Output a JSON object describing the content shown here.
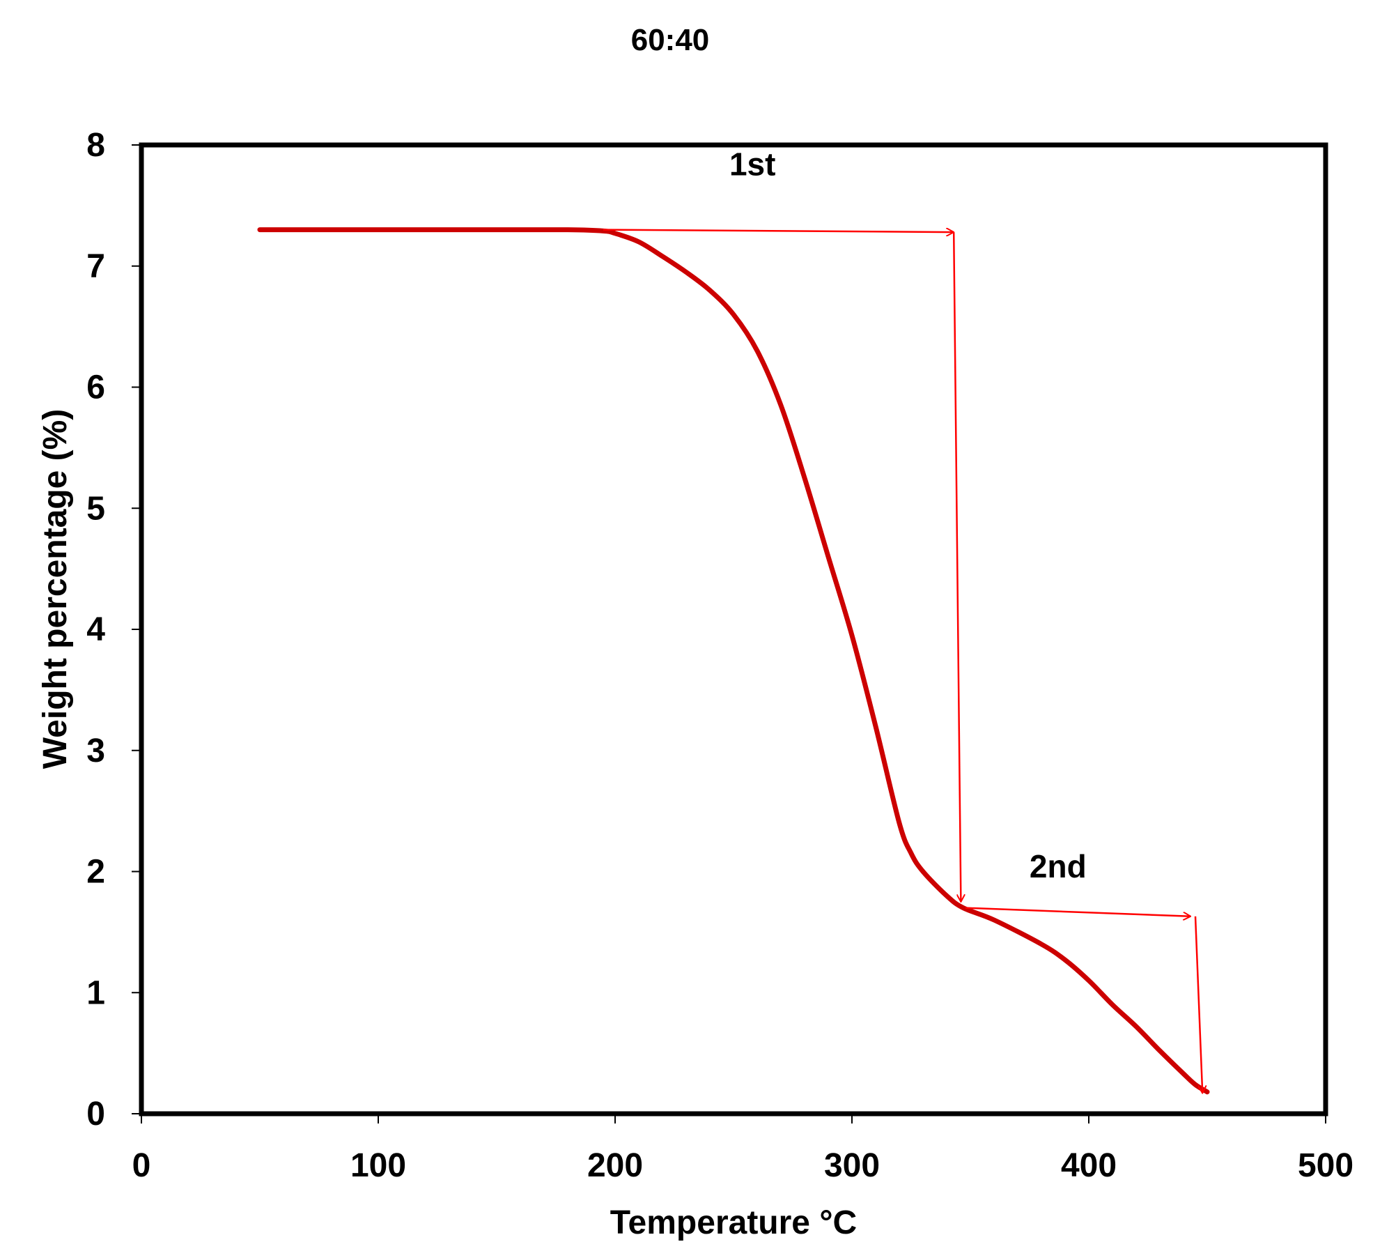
{
  "chart_data": {
    "type": "line",
    "title": "60:40",
    "xlabel": "Temperature °C",
    "ylabel": "Weight percentage (%)",
    "xlim": [
      0,
      500
    ],
    "ylim": [
      0,
      8
    ],
    "xticks": [
      0,
      100,
      200,
      300,
      400,
      500
    ],
    "yticks": [
      0,
      1,
      2,
      3,
      4,
      5,
      6,
      7,
      8
    ],
    "grid": false,
    "legend": "none",
    "series": [
      {
        "color": "#cc0000",
        "x": [
          50,
          100,
          150,
          180,
          195,
          200,
          210,
          220,
          230,
          240,
          250,
          260,
          270,
          280,
          290,
          300,
          310,
          320,
          325,
          330,
          340,
          347,
          360,
          380,
          390,
          400,
          410,
          420,
          430,
          440,
          445,
          450
        ],
        "y": [
          7.3,
          7.3,
          7.3,
          7.3,
          7.29,
          7.27,
          7.2,
          7.08,
          6.95,
          6.8,
          6.6,
          6.3,
          5.85,
          5.25,
          4.6,
          3.95,
          3.2,
          2.4,
          2.15,
          2.0,
          1.8,
          1.7,
          1.6,
          1.4,
          1.27,
          1.1,
          0.9,
          0.72,
          0.52,
          0.33,
          0.24,
          0.18
        ]
      }
    ],
    "annotations": [
      {
        "label": "1st",
        "label_at": [
          258,
          7.75
        ],
        "color": "#ff0000",
        "arrows": [
          {
            "from": [
              195,
              7.3
            ],
            "to": [
              343,
              7.28
            ]
          },
          {
            "from": [
              343,
              7.28
            ],
            "to": [
              346,
              1.75
            ]
          }
        ]
      },
      {
        "label": "2nd",
        "label_at": [
          387,
          1.95
        ],
        "color": "#ff0000",
        "arrows": [
          {
            "from": [
              348,
              1.7
            ],
            "to": [
              443,
              1.63
            ]
          },
          {
            "from": [
              445,
              1.63
            ],
            "to": [
              448,
              0.17
            ]
          }
        ]
      }
    ]
  }
}
